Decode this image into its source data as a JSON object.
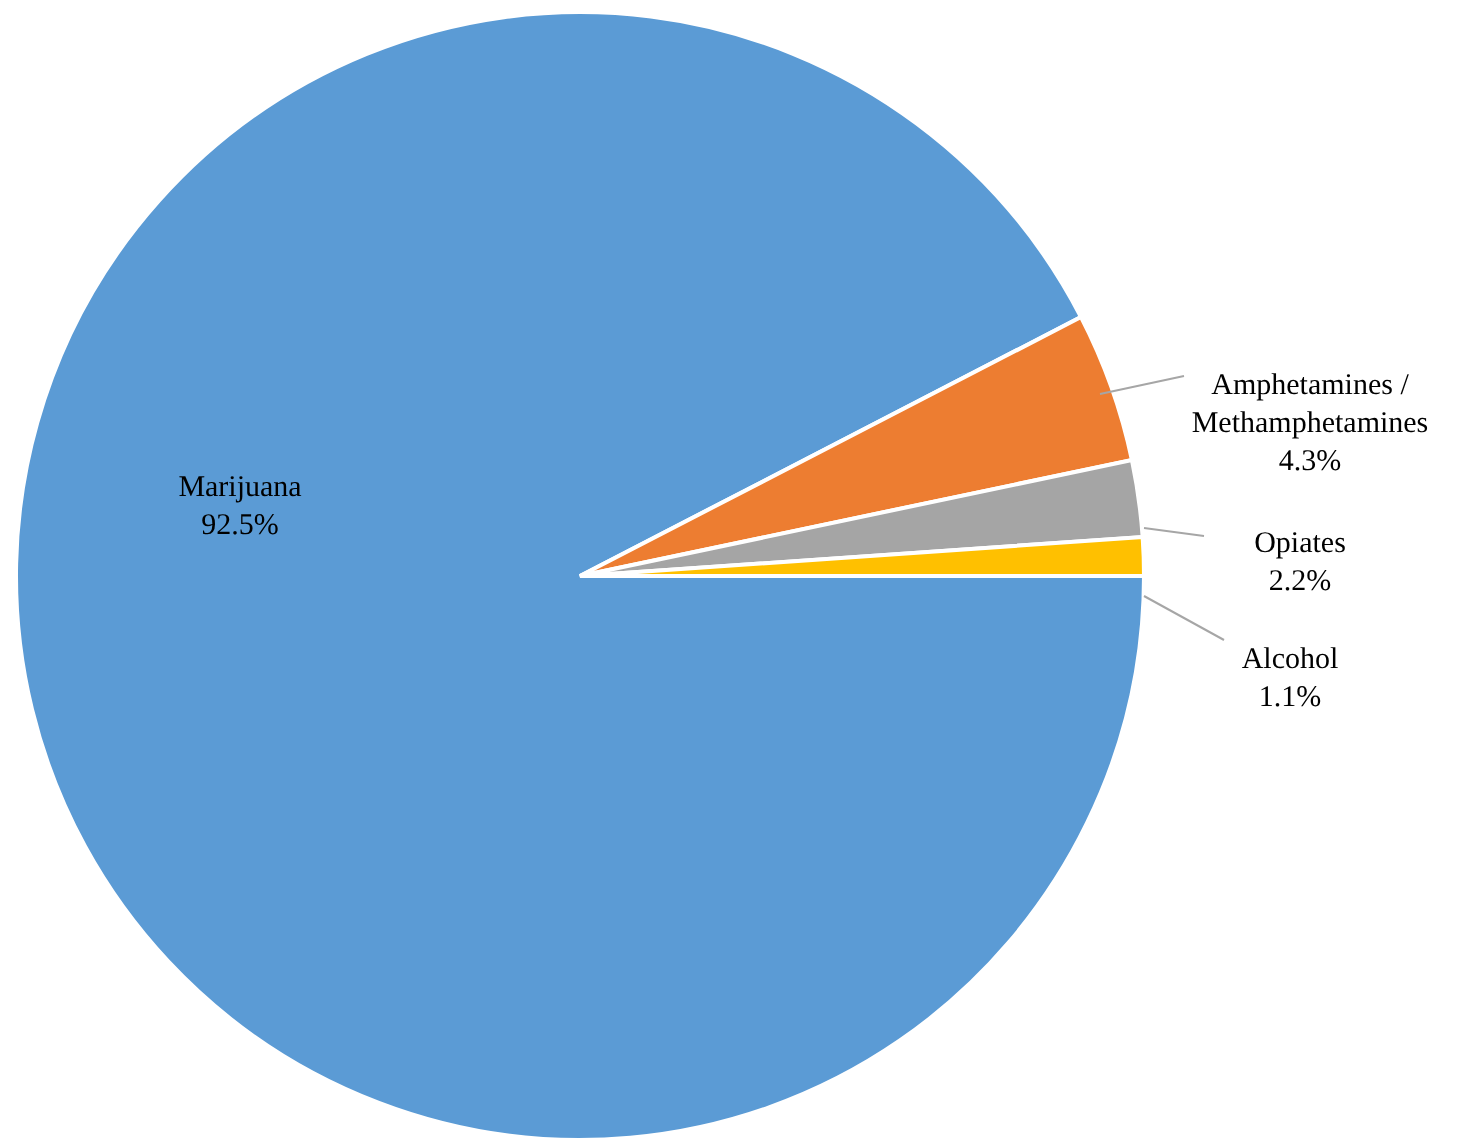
{
  "chart_data": {
    "type": "pie",
    "categories": [
      "Marijuana",
      "Amphetamines / Methamphetamines",
      "Opiates",
      "Alcohol"
    ],
    "values": [
      92.5,
      4.3,
      2.2,
      1.1
    ],
    "value_labels": [
      "92.5%",
      "4.3%",
      "2.2%",
      "1.1%"
    ],
    "colors": [
      "#5b9bd5",
      "#ed7d31",
      "#a5a5a5",
      "#ffc000"
    ]
  }
}
